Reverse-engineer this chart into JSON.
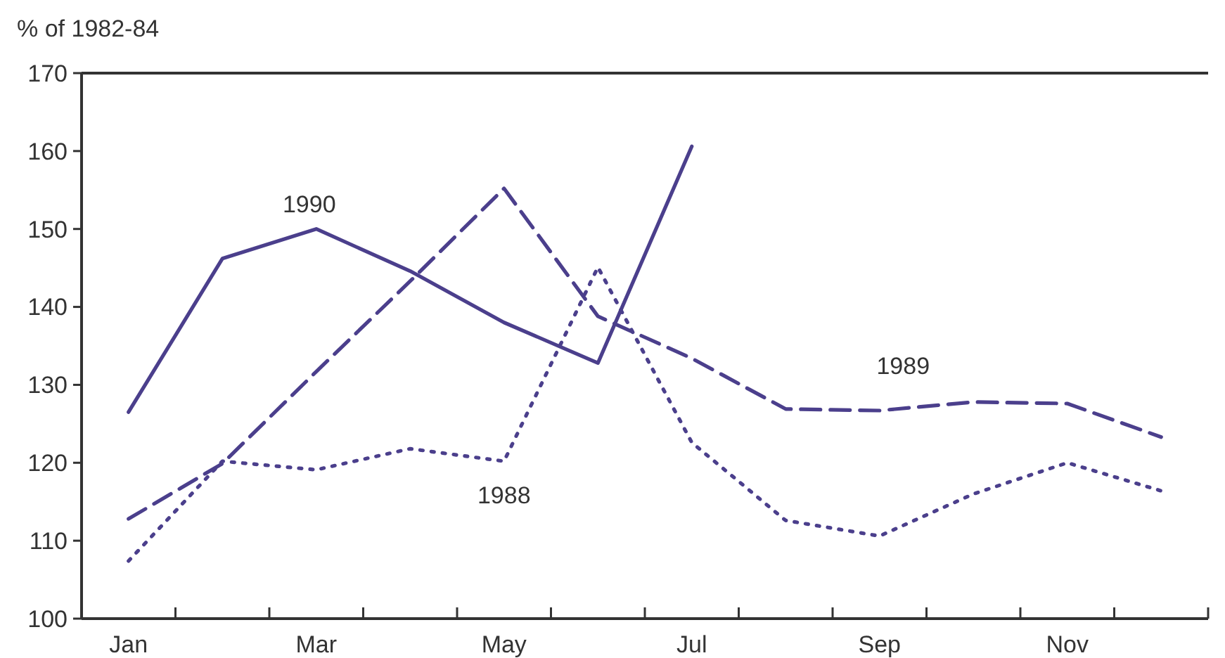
{
  "chart_data": {
    "type": "line",
    "ylabel": "% of 1982-84",
    "categories": [
      "Jan",
      null,
      "Mar",
      null,
      "May",
      null,
      "Jul",
      null,
      "Sep",
      null,
      "Nov",
      null
    ],
    "ylim": [
      100,
      170
    ],
    "yticks": [
      100,
      110,
      120,
      130,
      140,
      150,
      160,
      170
    ],
    "grid": false,
    "series": [
      {
        "name": "1990",
        "color": "#4b3f8c",
        "line_style": "solid",
        "values": [
          126.5,
          146.2,
          150,
          144.6,
          138,
          132.8,
          160.6,
          null,
          null,
          null,
          null,
          null
        ]
      },
      {
        "name": "1989",
        "color": "#4b3f8c",
        "line_style": "dashed",
        "values": [
          112.8,
          119.9,
          131.7,
          143.3,
          155.2,
          138.8,
          133.4,
          126.9,
          126.7,
          127.8,
          127.6,
          123.3
        ]
      },
      {
        "name": "1988",
        "color": "#4b3f8c",
        "line_style": "dotted",
        "values": [
          107.4,
          120.2,
          119.1,
          121.8,
          120.2,
          145.1,
          122.6,
          112.6,
          110.6,
          116,
          120,
          116.4
        ]
      }
    ]
  }
}
